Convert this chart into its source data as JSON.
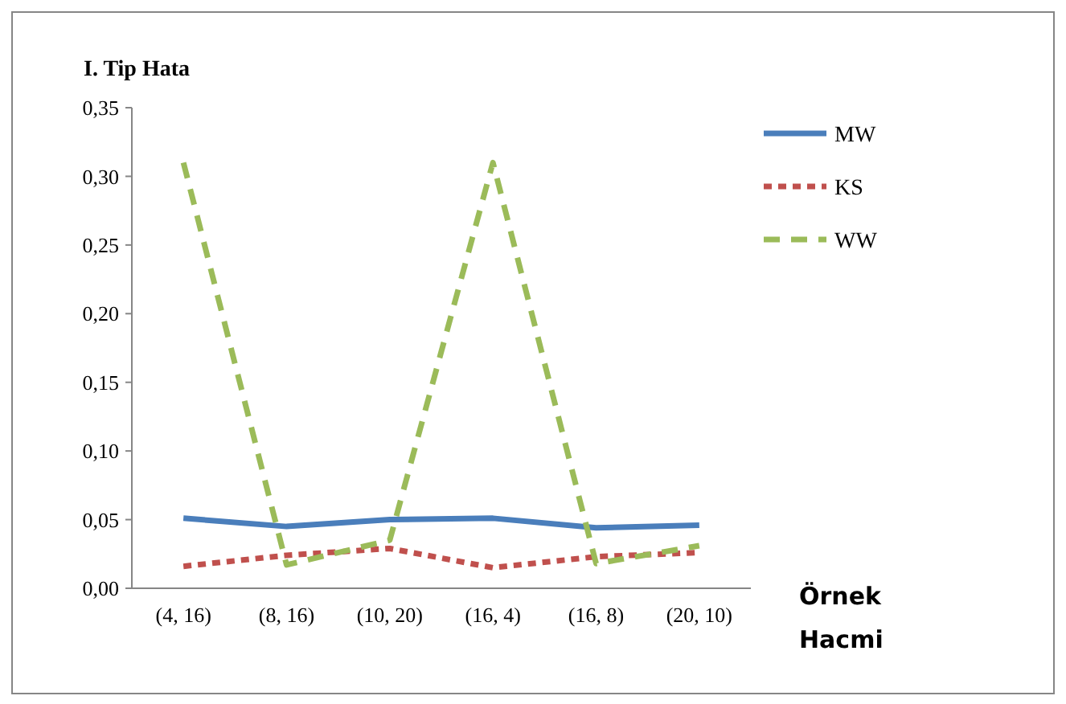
{
  "chart_data": {
    "type": "line",
    "ylabel": "I. Tip Hata",
    "xlabel": "Örnek Hacmi",
    "categories": [
      "(4, 16)",
      "(8, 16)",
      "(10, 20)",
      "(16, 4)",
      "(16, 8)",
      "(20, 10)"
    ],
    "ylim": [
      0,
      0.35
    ],
    "yticks": [
      {
        "value": 0,
        "label": "0,00"
      },
      {
        "value": 0.05,
        "label": "0,05"
      },
      {
        "value": 0.1,
        "label": "0,10"
      },
      {
        "value": 0.15,
        "label": "0,15"
      },
      {
        "value": 0.2,
        "label": "0,20"
      },
      {
        "value": 0.25,
        "label": "0,25"
      },
      {
        "value": 0.3,
        "label": "0,30"
      },
      {
        "value": 0.35,
        "label": "0,35"
      }
    ],
    "grid": false,
    "legend": "right",
    "marker": "none",
    "series": [
      {
        "name": "MW",
        "color": "#4a7ebb",
        "line_style": "solid",
        "values": [
          0.051,
          0.045,
          0.05,
          0.051,
          0.044,
          0.046
        ]
      },
      {
        "name": "KS",
        "color": "#c0504d",
        "line_style": "dotted",
        "values": [
          0.016,
          0.024,
          0.029,
          0.015,
          0.023,
          0.026
        ]
      },
      {
        "name": "WW",
        "color": "#9bbb59",
        "line_style": "dashed",
        "values": [
          0.31,
          0.017,
          0.035,
          0.31,
          0.018,
          0.031
        ]
      }
    ]
  }
}
